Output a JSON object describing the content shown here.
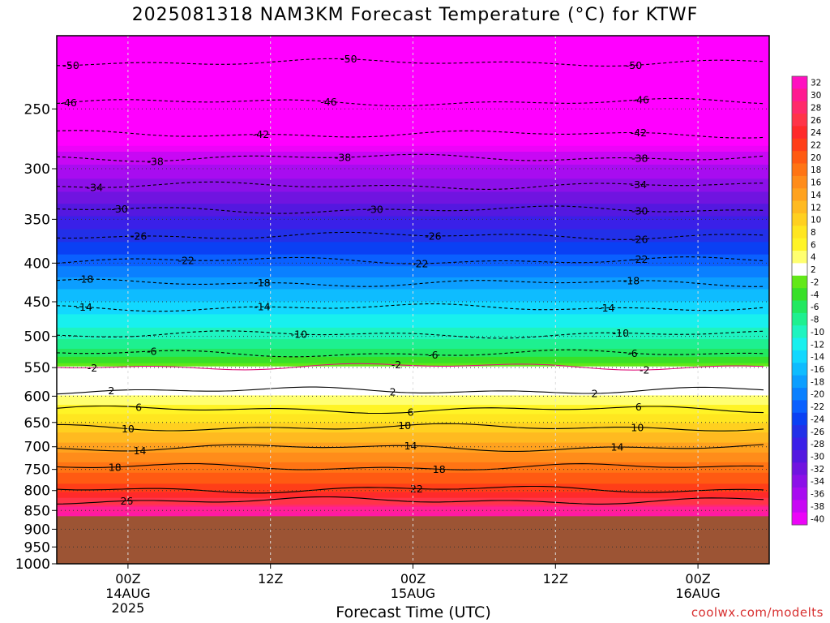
{
  "chart_data": {
    "type": "heatmap",
    "title": "2025081318 NAM3KM Forecast Temperature (°C) for KTWF",
    "xlabel": "Forecast Time (UTC)",
    "credit": "coolwx.com/modelts",
    "y_axis": {
      "scale": "log",
      "range": [
        1000,
        200
      ],
      "inverted": true,
      "ticks": [
        250,
        300,
        350,
        400,
        450,
        500,
        550,
        600,
        650,
        700,
        750,
        800,
        850,
        900,
        950,
        1000
      ]
    },
    "x_axis": {
      "range_hours": [
        18,
        78
      ],
      "ticks": [
        {
          "hour": 24,
          "lines": [
            "00Z",
            "14AUG",
            "2025"
          ]
        },
        {
          "hour": 36,
          "lines": [
            "12Z"
          ]
        },
        {
          "hour": 48,
          "lines": [
            "00Z",
            "15AUG"
          ]
        },
        {
          "hour": 60,
          "lines": [
            "12Z"
          ]
        },
        {
          "hour": 72,
          "lines": [
            "00Z",
            "16AUG"
          ]
        }
      ]
    },
    "colorbar": {
      "labels": [
        "32",
        "30",
        "28",
        "26",
        "24",
        "22",
        "20",
        "18",
        "16",
        "14",
        "12",
        "10",
        "8",
        "6",
        "4",
        "2",
        "-2",
        "-4",
        "-6",
        "-8",
        "-10",
        "-12",
        "-14",
        "-16",
        "-18",
        "-20",
        "-22",
        "-24",
        "-26",
        "-28",
        "-30",
        "-32",
        "-34",
        "-36",
        "-38",
        "-40"
      ],
      "colors": [
        "#ff10c0",
        "#ff1a90",
        "#ff2a6a",
        "#ff3448",
        "#ff2a2a",
        "#ff3e18",
        "#ff5a12",
        "#ff7414",
        "#ff8c1a",
        "#ffa21e",
        "#ffba20",
        "#ffd020",
        "#ffe620",
        "#fff426",
        "#ffff70",
        "#ffffff",
        "#62e818",
        "#38e028",
        "#22e860",
        "#1ef090",
        "#1ef4c0",
        "#18f0ee",
        "#12d8ff",
        "#0ebcff",
        "#0c9eff",
        "#0a80ff",
        "#0a60ff",
        "#0a40f4",
        "#2230e8",
        "#3a20e8",
        "#5418e0",
        "#7014e0",
        "#8c10e8",
        "#a80cf0",
        "#c808f4",
        "#ec04f8"
      ]
    },
    "ground": {
      "pressure_top": 865,
      "color": "#9c5434"
    },
    "isotherms": [
      {
        "value": -50,
        "p": 217,
        "labels": [
          {
            "h": 19.2,
            "t": "-50"
          },
          {
            "h": 42.6,
            "t": "-50"
          },
          {
            "h": 66.6,
            "t": "-50"
          }
        ]
      },
      {
        "value": -46,
        "p": 245,
        "labels": [
          {
            "h": 19.0,
            "t": "-46"
          },
          {
            "h": 40.9,
            "t": "-46"
          },
          {
            "h": 67.2,
            "t": "-46"
          }
        ]
      },
      {
        "value": -42,
        "p": 270,
        "labels": [
          {
            "h": 17.3,
            "t": "-42"
          },
          {
            "h": 35.2,
            "t": "-42"
          },
          {
            "h": 67.0,
            "t": "-42"
          }
        ]
      },
      {
        "value": -38,
        "p": 290,
        "labels": [
          {
            "h": 26.3,
            "t": "-38"
          },
          {
            "h": 42.1,
            "t": "-38"
          },
          {
            "h": 67.1,
            "t": "-38"
          }
        ]
      },
      {
        "value": -34,
        "p": 316,
        "labels": [
          {
            "h": 21.2,
            "t": "-34"
          },
          {
            "h": 67.0,
            "t": "-34"
          }
        ]
      },
      {
        "value": -30,
        "p": 340,
        "labels": [
          {
            "h": 23.3,
            "t": "-30"
          },
          {
            "h": 44.8,
            "t": "-30"
          },
          {
            "h": 67.1,
            "t": "-30"
          }
        ]
      },
      {
        "value": -26,
        "p": 368,
        "labels": [
          {
            "h": 24.9,
            "t": "-26"
          },
          {
            "h": 49.7,
            "t": "-26"
          },
          {
            "h": 67.1,
            "t": "-26"
          }
        ]
      },
      {
        "value": -22,
        "p": 397,
        "labels": [
          {
            "h": 28.9,
            "t": "-22"
          },
          {
            "h": 48.6,
            "t": "-22"
          },
          {
            "h": 67.1,
            "t": "-22"
          }
        ]
      },
      {
        "value": -18,
        "p": 425,
        "labels": [
          {
            "h": 20.4,
            "t": "-18"
          },
          {
            "h": 35.3,
            "t": "-18"
          },
          {
            "h": 66.4,
            "t": "-18"
          }
        ]
      },
      {
        "value": -14,
        "p": 458,
        "labels": [
          {
            "h": 20.3,
            "t": "-14"
          },
          {
            "h": 35.3,
            "t": "-14"
          },
          {
            "h": 64.3,
            "t": "-14"
          }
        ]
      },
      {
        "value": -10,
        "p": 497,
        "labels": [
          {
            "h": 38.4,
            "t": "-10"
          },
          {
            "h": 65.5,
            "t": "-10"
          }
        ]
      },
      {
        "value": -6,
        "p": 527,
        "labels": [
          {
            "h": 26.0,
            "t": "-6"
          },
          {
            "h": 49.7,
            "t": "-6"
          },
          {
            "h": 66.5,
            "t": "-6"
          }
        ]
      },
      {
        "value": -2,
        "p": 548,
        "labels": [
          {
            "h": 21.0,
            "t": "-2"
          },
          {
            "h": 46.6,
            "t": "-2"
          },
          {
            "h": 67.5,
            "t": "-2"
          }
        ]
      },
      {
        "value": 2,
        "p": 590,
        "labels": [
          {
            "h": 22.6,
            "t": "2"
          },
          {
            "h": 46.3,
            "t": "2"
          },
          {
            "h": 63.3,
            "t": "2"
          }
        ]
      },
      {
        "value": 6,
        "p": 625,
        "labels": [
          {
            "h": 24.9,
            "t": "6"
          },
          {
            "h": 47.8,
            "t": "6"
          },
          {
            "h": 67.0,
            "t": "6"
          }
        ]
      },
      {
        "value": 10,
        "p": 660,
        "labels": [
          {
            "h": 24.0,
            "t": "10"
          },
          {
            "h": 47.3,
            "t": "10"
          },
          {
            "h": 66.9,
            "t": "10"
          }
        ]
      },
      {
        "value": 14,
        "p": 702,
        "labels": [
          {
            "h": 25.0,
            "t": "14"
          },
          {
            "h": 47.8,
            "t": "14"
          },
          {
            "h": 65.2,
            "t": "14"
          }
        ]
      },
      {
        "value": 18,
        "p": 745,
        "labels": [
          {
            "h": 22.9,
            "t": "18"
          },
          {
            "h": 50.2,
            "t": "18"
          }
        ]
      },
      {
        "value": 22,
        "p": 797,
        "labels": [
          {
            "h": 48.3,
            "t": "22"
          }
        ]
      },
      {
        "value": 26,
        "p": 825,
        "labels": [
          {
            "h": 23.9,
            "t": "26"
          }
        ]
      }
    ]
  }
}
